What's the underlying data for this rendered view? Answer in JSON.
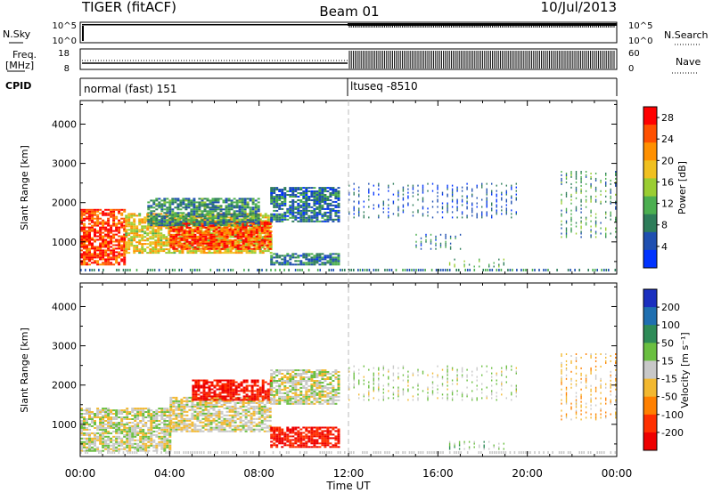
{
  "header": {
    "station": "TIGER (fitACF)",
    "beam": "Beam 01",
    "date": "10/Jul/2013"
  },
  "top_panels": {
    "nsky_label": "N.Sky",
    "nsearch_label": "N.Search",
    "freq_label_1": "Freq.",
    "freq_label_2": "[MHz]",
    "nave_label": "Nave",
    "cpid_label": "CPID",
    "ticks_left_1": [
      "10^5",
      "10^0"
    ],
    "ticks_right_1": [
      "10^5",
      "10^0"
    ],
    "ticks_left_2": [
      "18",
      "8"
    ],
    "ticks_right_2": [
      "60",
      "0"
    ],
    "cpid_segments": [
      {
        "label": "normal (fast) 151",
        "start_hour": 0,
        "end_hour": 12
      },
      {
        "label": "ltuseq -8510",
        "start_hour": 12,
        "end_hour": 24
      }
    ]
  },
  "axes": {
    "x_label": "Time UT",
    "x_ticks": [
      "00:00",
      "04:00",
      "08:00",
      "12:00",
      "16:00",
      "20:00",
      "00:00"
    ],
    "x_range_hours": [
      0,
      24
    ],
    "y_label": "Slant Range [km]",
    "y_ticks": [
      "1000",
      "2000",
      "3000",
      "4000"
    ],
    "y_tick_values": [
      1000,
      2000,
      3000,
      4000
    ],
    "y_range_km": [
      180,
      4600
    ]
  },
  "chart_data": [
    {
      "type": "heatmap",
      "panel": "power",
      "colorbar_label": "Power [dB]",
      "colorbar_ticks": [
        "4",
        "8",
        "12",
        "16",
        "20",
        "24",
        "28"
      ],
      "colorbar_tick_values": [
        4,
        8,
        12,
        16,
        20,
        24,
        28
      ],
      "value_range": [
        0,
        30
      ],
      "colors": [
        "#0033ff",
        "#1f4fb0",
        "#2e7d5a",
        "#4caf50",
        "#9acd32",
        "#f0c020",
        "#ff9000",
        "#ff5000",
        "#ff0000"
      ],
      "regions": [
        {
          "t0": 0.0,
          "t1": 2.0,
          "r0": 400,
          "r1": 1800,
          "value": 26
        },
        {
          "t0": 2.0,
          "t1": 8.5,
          "r0": 700,
          "r1": 1700,
          "value": 18
        },
        {
          "t0": 4.0,
          "t1": 8.5,
          "r0": 800,
          "r1": 1500,
          "value": 26
        },
        {
          "t0": 3.0,
          "t1": 8.0,
          "r0": 1400,
          "r1": 2100,
          "value": 9
        },
        {
          "t0": 8.5,
          "t1": 11.5,
          "r0": 400,
          "r1": 700,
          "value": 8
        },
        {
          "t0": 8.5,
          "t1": 11.5,
          "r0": 1500,
          "r1": 2400,
          "value": 7
        },
        {
          "t0": 12.0,
          "t1": 19.5,
          "r0": 1600,
          "r1": 2500,
          "value": 5
        },
        {
          "t0": 15.0,
          "t1": 17.0,
          "r0": 800,
          "r1": 1200,
          "value": 7
        },
        {
          "t0": 16.5,
          "t1": 19.0,
          "r0": 350,
          "r1": 550,
          "value": 12
        },
        {
          "t0": 21.5,
          "t1": 24.0,
          "r0": 1100,
          "r1": 2800,
          "value": 10
        }
      ]
    },
    {
      "type": "heatmap",
      "panel": "velocity",
      "colorbar_label": "Velocity [m s⁻¹]",
      "colorbar_ticks": [
        "200",
        "100",
        "50",
        "15",
        "-15",
        "-50",
        "-100",
        "-200"
      ],
      "colorbar_tick_values": [
        200,
        100,
        50,
        15,
        -15,
        -50,
        -100,
        -200
      ],
      "value_range": [
        -250,
        250
      ],
      "colors": [
        "#1a2fbf",
        "#1f6fb0",
        "#2e8b57",
        "#6abf40",
        "#c8c8c8",
        "#f2b830",
        "#ff8000",
        "#ff3000",
        "#ee0000"
      ],
      "regions": [
        {
          "t0": 0.0,
          "t1": 4.0,
          "r0": 300,
          "r1": 1400,
          "value": 0
        },
        {
          "t0": 4.0,
          "t1": 8.5,
          "r0": 800,
          "r1": 1700,
          "value": -10
        },
        {
          "t0": 5.0,
          "t1": 8.5,
          "r0": 1600,
          "r1": 2100,
          "value": -200
        },
        {
          "t0": 8.5,
          "t1": 11.5,
          "r0": 400,
          "r1": 900,
          "value": -200
        },
        {
          "t0": 8.5,
          "t1": 11.5,
          "r0": 1500,
          "r1": 2400,
          "value": 0
        },
        {
          "t0": 12.0,
          "t1": 19.5,
          "r0": 1600,
          "r1": 2500,
          "value": 20
        },
        {
          "t0": 16.5,
          "t1": 19.0,
          "r0": 350,
          "r1": 550,
          "value": 50
        },
        {
          "t0": 21.5,
          "t1": 24.0,
          "r0": 1100,
          "r1": 2800,
          "value": -60
        }
      ]
    }
  ]
}
